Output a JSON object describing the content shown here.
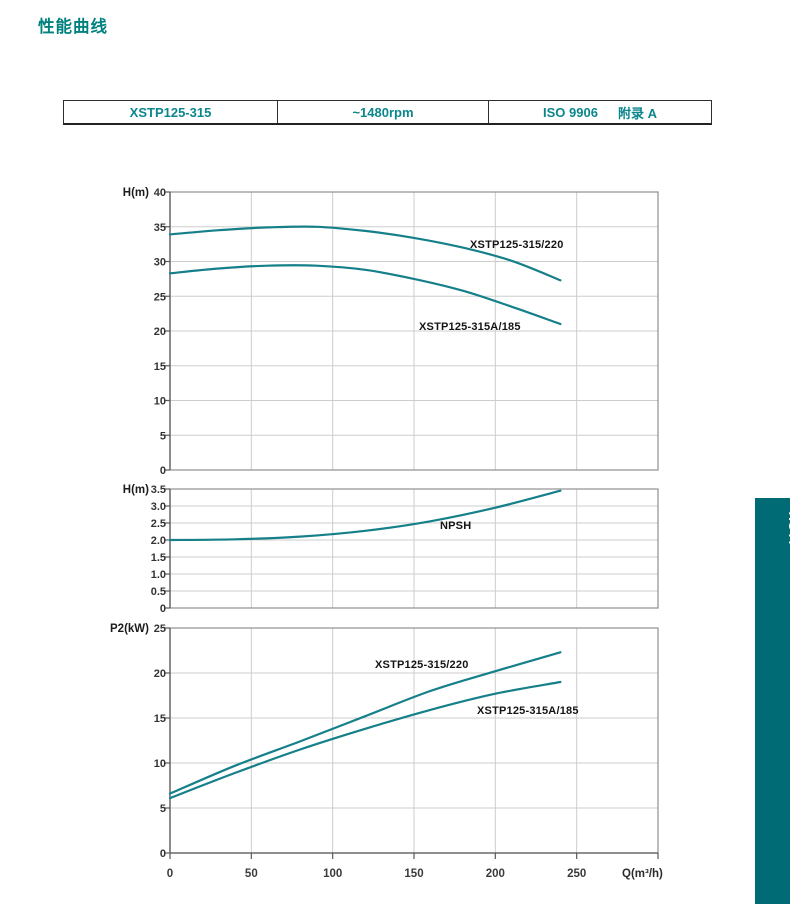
{
  "page": {
    "title": "性能曲线",
    "side_tab_label": "XSTP",
    "colors": {
      "accent_teal": "#00827E",
      "table_text_teal": "#0B868C",
      "curve_teal": "#15808A",
      "tab_bg_teal": "#006A75",
      "grid_gray": "#cdcdcd",
      "border_gray": "#8f8f8f",
      "axis_gray": "#5a5a5a"
    }
  },
  "spec_table": {
    "model": "XSTP125-315",
    "speed": "~1480rpm",
    "standard": "ISO 9906",
    "standard_appendix": "附录 A"
  },
  "chart_data": [
    {
      "type": "line",
      "title": "",
      "ylabel": "H(m)",
      "ylim": [
        0,
        40
      ],
      "ytick_step": 5,
      "xlim": [
        0,
        300
      ],
      "xticks": [
        0,
        50,
        100,
        150,
        200,
        250
      ],
      "grid": true,
      "legend_position": "inline-labels",
      "series": [
        {
          "name": "XSTP125-315/220",
          "x": [
            0,
            30,
            60,
            90,
            120,
            150,
            180,
            210,
            240
          ],
          "y": [
            33.9,
            34.5,
            34.9,
            35.0,
            34.4,
            33.4,
            32.0,
            30.1,
            27.3
          ]
        },
        {
          "name": "XSTP125-315A/185",
          "x": [
            0,
            30,
            60,
            90,
            120,
            150,
            180,
            210,
            240
          ],
          "y": [
            28.3,
            29.0,
            29.4,
            29.4,
            28.8,
            27.5,
            25.8,
            23.5,
            21.0
          ]
        }
      ]
    },
    {
      "type": "line",
      "title": "",
      "ylabel": "H(m)",
      "ylim": [
        0,
        3.5
      ],
      "ytick_step": 0.5,
      "xlim": [
        0,
        300
      ],
      "xticks": [
        0,
        50,
        100,
        150,
        200,
        250
      ],
      "grid": true,
      "legend_position": "inline-labels",
      "series": [
        {
          "name": "NPSH",
          "x": [
            0,
            40,
            80,
            120,
            160,
            200,
            240
          ],
          "y": [
            2.0,
            2.02,
            2.1,
            2.27,
            2.55,
            2.95,
            3.45
          ]
        }
      ]
    },
    {
      "type": "line",
      "title": "",
      "ylabel": "P2(kW)",
      "xlabel": "Q(m³/h)",
      "ylim": [
        0,
        25
      ],
      "ytick_step": 5,
      "xlim": [
        0,
        300
      ],
      "xticks": [
        0,
        50,
        100,
        150,
        200,
        250
      ],
      "grid": true,
      "legend_position": "inline-labels",
      "series": [
        {
          "name": "XSTP125-315/220",
          "x": [
            0,
            40,
            80,
            120,
            160,
            200,
            240
          ],
          "y": [
            6.6,
            9.7,
            12.4,
            15.2,
            18.0,
            20.2,
            22.3
          ]
        },
        {
          "name": "XSTP125-315A/185",
          "x": [
            0,
            40,
            80,
            120,
            160,
            200,
            240
          ],
          "y": [
            6.1,
            8.9,
            11.5,
            13.8,
            15.9,
            17.7,
            19.0
          ]
        }
      ]
    }
  ]
}
